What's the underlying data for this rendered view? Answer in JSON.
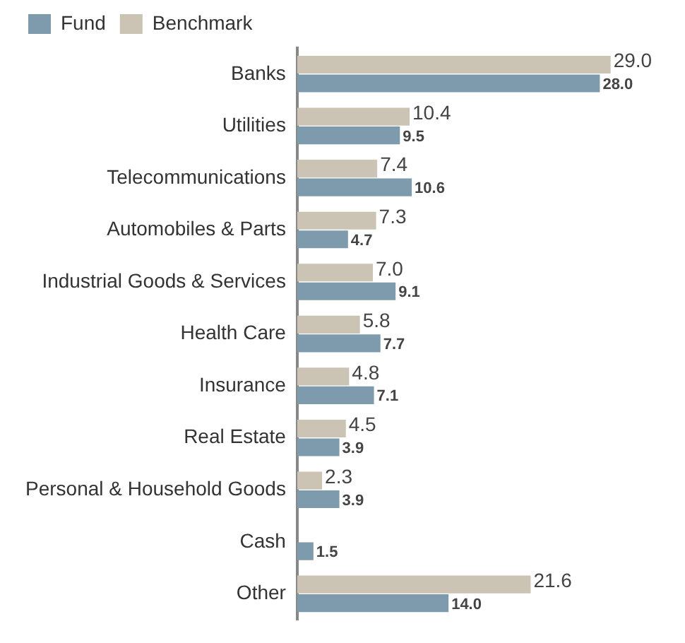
{
  "chart_data": {
    "type": "bar",
    "orientation": "horizontal",
    "categories": [
      "Banks",
      "Utilities",
      "Telecommunications",
      "Automobiles & Parts",
      "Industrial Goods & Services",
      "Health Care",
      "Insurance",
      "Real Estate",
      "Personal & Household Goods",
      "Cash",
      "Other"
    ],
    "series": [
      {
        "name": "Benchmark",
        "color": "#cbc4b4",
        "values": [
          29.0,
          10.4,
          7.4,
          7.3,
          7.0,
          5.8,
          4.8,
          4.5,
          2.3,
          null,
          21.6
        ],
        "value_labels": [
          "29.0",
          "10.4",
          "7.4",
          "7.3",
          "7.0",
          "5.8",
          "4.8",
          "4.5",
          "2.3",
          null,
          "21.6"
        ]
      },
      {
        "name": "Fund",
        "color": "#7e9aad",
        "values": [
          28.0,
          9.5,
          10.6,
          4.7,
          9.1,
          7.7,
          7.1,
          3.9,
          3.9,
          1.5,
          14.0
        ],
        "value_labels": [
          "28.0",
          "9.5",
          "10.6",
          "4.7",
          "9.1",
          "7.7",
          "7.1",
          "3.9",
          "3.9",
          "1.5",
          "14.0"
        ]
      }
    ],
    "legend": "top left",
    "grid": false
  }
}
